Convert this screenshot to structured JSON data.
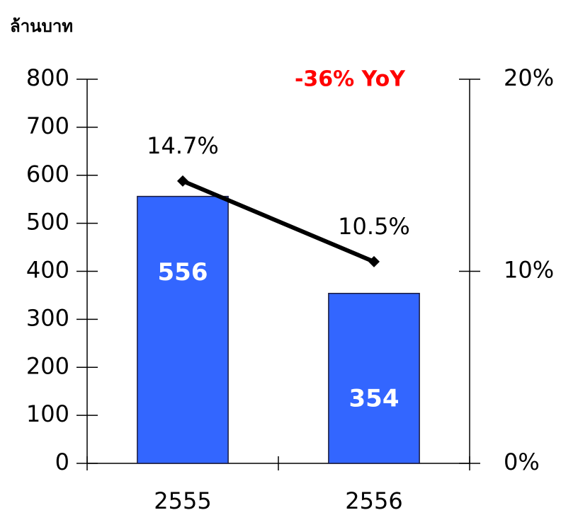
{
  "chart_data": {
    "type": "combo",
    "y_axis_label": "ล้านบาท",
    "annotation": "-36% YoY",
    "categories": [
      "2555",
      "2556"
    ],
    "series": [
      {
        "type": "bar",
        "color": "#3366ff",
        "values": [
          556,
          354
        ]
      },
      {
        "type": "line",
        "axis": "y2",
        "color": "#000000",
        "values": [
          14.7,
          10.5
        ],
        "value_labels": [
          "14.7%",
          "10.5%"
        ]
      }
    ],
    "ylim": [
      0,
      800
    ],
    "yticks": [
      0,
      100,
      200,
      300,
      400,
      500,
      600,
      700,
      800
    ],
    "y2lim": [
      0,
      20
    ],
    "y2ticks": [
      {
        "value": 0,
        "label": "0%"
      },
      {
        "value": 10,
        "label": "10%"
      },
      {
        "value": 20,
        "label": "20%"
      }
    ]
  }
}
